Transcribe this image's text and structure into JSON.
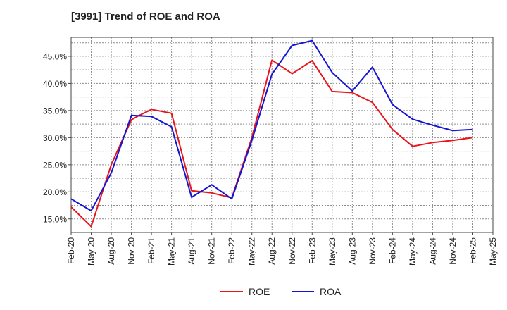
{
  "chart_data": {
    "type": "line",
    "title": "[3991]  Trend of ROE and ROA",
    "xlabel": "",
    "ylabel": "",
    "categories": [
      "Feb-20",
      "May-20",
      "Aug-20",
      "Nov-20",
      "Feb-21",
      "May-21",
      "Aug-21",
      "Nov-21",
      "Feb-22",
      "May-22",
      "Aug-22",
      "Nov-22",
      "Feb-23",
      "May-23",
      "Aug-23",
      "Nov-23",
      "Feb-24",
      "May-24",
      "Aug-24",
      "Nov-24",
      "Feb-25",
      "May-25"
    ],
    "ylim": [
      12.5,
      48.5
    ],
    "yticks": [
      15.0,
      20.0,
      25.0,
      30.0,
      35.0,
      40.0,
      45.0
    ],
    "ytick_labels": [
      "15.0%",
      "20.0%",
      "25.0%",
      "30.0%",
      "35.0%",
      "40.0%",
      "45.0%"
    ],
    "grid": true,
    "legend_position": "bottom-center",
    "series": [
      {
        "name": "ROE",
        "color": "#e8141b",
        "x": [
          0,
          1,
          2,
          3,
          3.33,
          4,
          5,
          6,
          7,
          8,
          9,
          10,
          11,
          11.67,
          12,
          13,
          14,
          15,
          16,
          17,
          18,
          19,
          20
        ],
        "values": [
          17.2,
          13.6,
          25.0,
          33.3,
          34.0,
          35.2,
          34.5,
          20.2,
          19.8,
          18.9,
          30.0,
          44.3,
          41.8,
          43.4,
          44.2,
          38.5,
          38.3,
          36.5,
          31.5,
          28.4,
          29.1,
          29.5,
          30.0
        ]
      },
      {
        "name": "ROA",
        "color": "#1414d2",
        "x": [
          0,
          1,
          2,
          3,
          4,
          5,
          6,
          7,
          8,
          9,
          10,
          11,
          12,
          13,
          14,
          15,
          16,
          17,
          18,
          19,
          20
        ],
        "values": [
          18.7,
          16.5,
          23.5,
          34.1,
          33.9,
          32.0,
          19.0,
          21.3,
          18.7,
          29.5,
          41.7,
          47.0,
          47.9,
          42.0,
          38.6,
          43.0,
          36.1,
          33.4,
          32.3,
          31.3,
          31.5
        ]
      }
    ]
  }
}
